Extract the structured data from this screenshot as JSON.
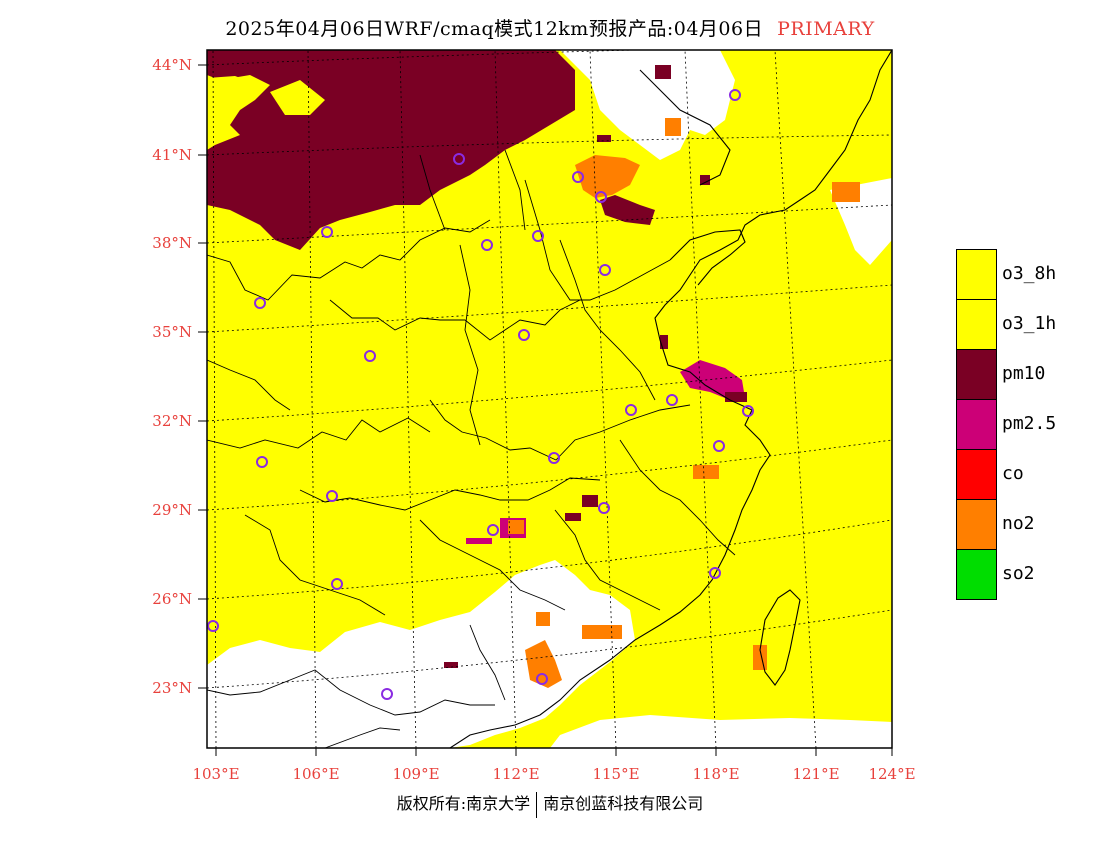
{
  "header": {
    "title": "2025年04月06日WRF/cmaq模式12km预报产品:04月06日",
    "tag": "PRIMARY"
  },
  "map": {
    "lat_labels": [
      "44°N",
      "41°N",
      "38°N",
      "35°N",
      "32°N",
      "29°N",
      "26°N",
      "23°N"
    ],
    "lon_labels": [
      "103°E",
      "106°E",
      "109°E",
      "112°E",
      "115°E",
      "118°E",
      "121°E",
      "124°E"
    ],
    "lat_range": [
      21,
      44.5
    ],
    "lon_range": [
      102.7,
      124
    ],
    "pollutant_colors": {
      "o3_8h": "#ffff00",
      "o3_1h": "#ffff00",
      "pm10": "#7a0024",
      "pm2.5": "#cc0077",
      "co": "#ff0000",
      "no2": "#ff7f00",
      "so2": "#00dd00",
      "none": "#ffffff"
    },
    "station_marker_color": "#8a2be2"
  },
  "legend": {
    "items": [
      {
        "label": "o3_8h",
        "color": "#ffff00"
      },
      {
        "label": "o3_1h",
        "color": "#ffff00"
      },
      {
        "label": "pm10",
        "color": "#7a0024"
      },
      {
        "label": "pm2.5",
        "color": "#cc0077"
      },
      {
        "label": "co",
        "color": "#ff0000"
      },
      {
        "label": "no2",
        "color": "#ff7f00"
      },
      {
        "label": "so2",
        "color": "#00dd00"
      }
    ]
  },
  "footer": {
    "left": "版权所有:南京大学",
    "right": "南京创蓝科技有限公司"
  }
}
